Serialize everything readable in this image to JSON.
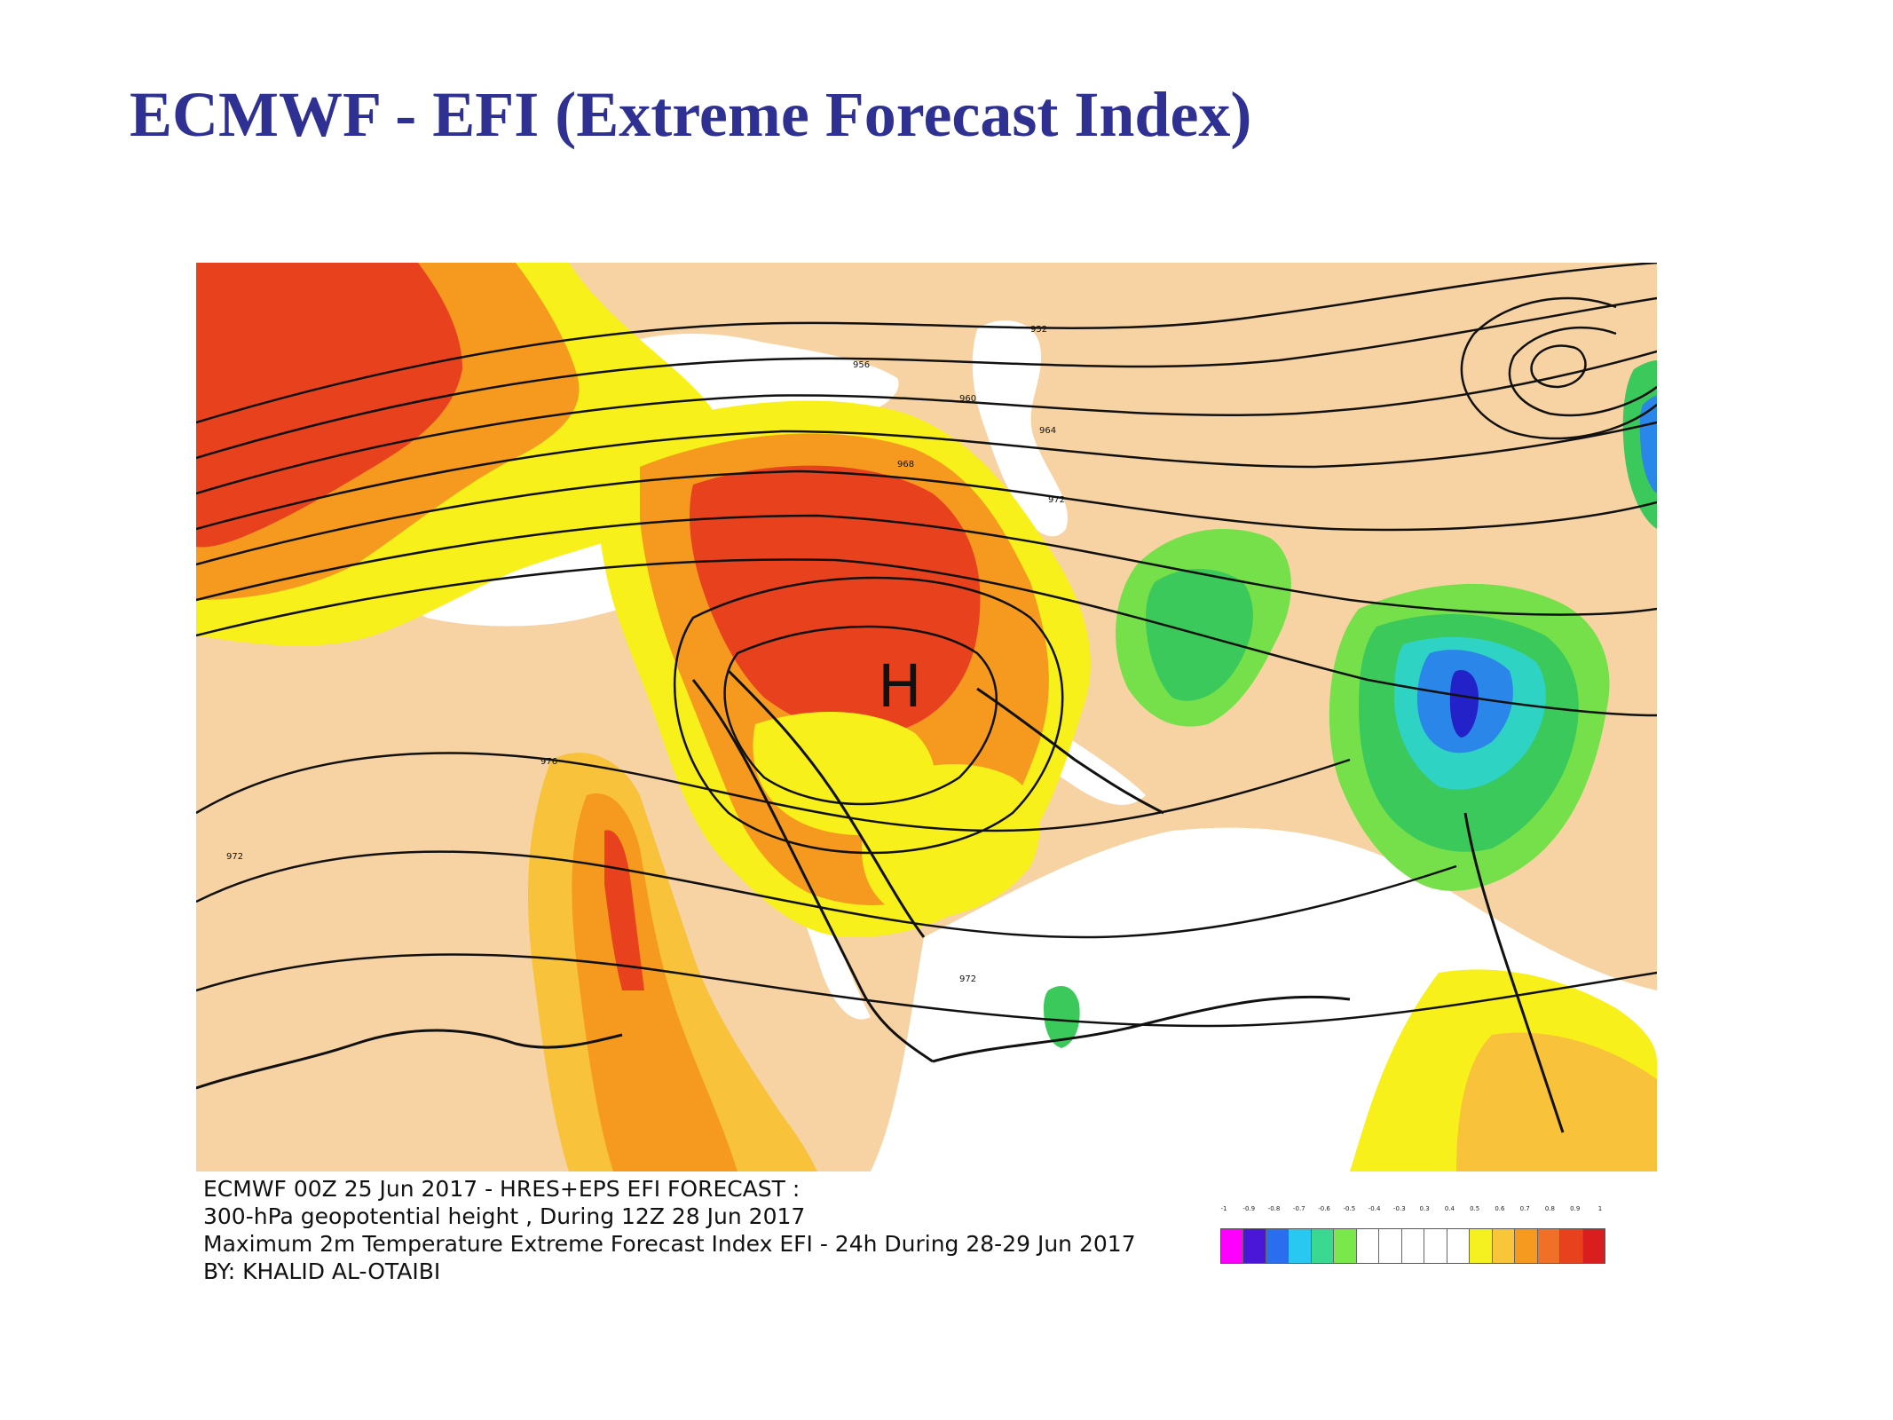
{
  "slide": {
    "title": "ECMWF - EFI (Extreme Forecast Index)"
  },
  "map": {
    "high_label": "H",
    "contour_labels": [
      "952",
      "956",
      "960",
      "964",
      "968",
      "972",
      "976",
      "972",
      "972"
    ],
    "colors": {
      "land": "#f7d3a4",
      "sea": "#ffffff",
      "yellow": "#f7f01a",
      "light_orange": "#f8c23a",
      "orange": "#f59a1e",
      "dark_orange": "#f0702a",
      "red": "#e8411e",
      "green_light": "#76e04a",
      "green": "#3ac95a",
      "cyan": "#2fd3c4",
      "blue": "#2a86e8",
      "dark_blue": "#2222c8"
    }
  },
  "caption": {
    "line1": "ECMWF 00Z 25 Jun 2017 - HRES+EPS EFI FORECAST :",
    "line2": "300-hPa geopotential height , During 12Z 28 Jun 2017",
    "line3": "Maximum 2m Temperature Extreme Forecast Index EFI - 24h During 28-29 Jun 2017",
    "line4": "BY: KHALID AL-OTAIBI"
  },
  "legend": {
    "ticks": [
      "-1",
      "-0.9",
      "-0.8",
      "-0.7",
      "-0.6",
      "-0.5",
      "-0.4",
      "-0.3",
      "0.3",
      "0.4",
      "0.5",
      "0.6",
      "0.7",
      "0.8",
      "0.9",
      "1"
    ],
    "colors": [
      "#ff00ff",
      "#4a16d8",
      "#2a6ef0",
      "#28c8f0",
      "#3ad890",
      "#7ae84a",
      "#ffffff",
      "#ffffff",
      "#ffffff",
      "#ffffff",
      "#ffffff",
      "#f5f020",
      "#f8c638",
      "#f59a1e",
      "#f07028",
      "#e8411e",
      "#d81e1e"
    ]
  }
}
